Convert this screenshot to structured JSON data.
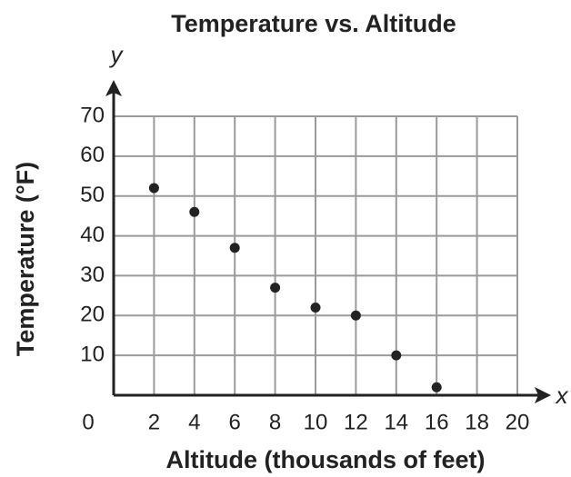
{
  "chart_data": {
    "type": "scatter",
    "title": "Temperature vs. Altitude",
    "x_label": "Altitude (thousands of feet)",
    "y_label": "Temperature (°F)",
    "x_axis_symbol": "x",
    "y_axis_symbol": "y",
    "x": [
      2,
      4,
      6,
      8,
      10,
      12,
      14,
      16
    ],
    "values": [
      52,
      46,
      37,
      27,
      22,
      20,
      10,
      2
    ],
    "color": "#222222",
    "xlim": [
      0,
      20
    ],
    "xticks": [
      0,
      2,
      4,
      6,
      8,
      10,
      12,
      14,
      16,
      18,
      20
    ],
    "ylim": [
      0,
      70
    ],
    "yticks": [
      10,
      20,
      30,
      40,
      50,
      60,
      70
    ],
    "grid": true
  }
}
